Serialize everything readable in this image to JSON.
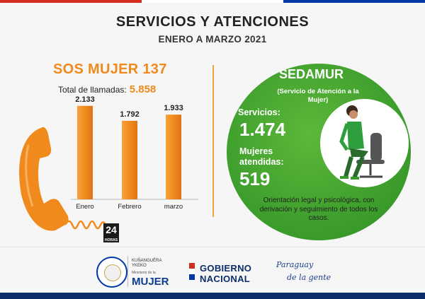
{
  "header": {
    "title": "SERVICIOS Y ATENCIONES",
    "subtitle": "ENERO A MARZO 2021"
  },
  "sos": {
    "title": "SOS MUJER 137",
    "total_label": "Total de llamadas:",
    "total_value": "5.858",
    "badge_number": "24",
    "badge_text": "HORAS"
  },
  "chart_data": {
    "type": "bar",
    "categories": [
      "Enero",
      "Febrero",
      "marzo"
    ],
    "values": [
      2133,
      1792,
      1933
    ],
    "value_labels": [
      "2.133",
      "1.792",
      "1.933"
    ],
    "ylim": [
      0,
      2500
    ],
    "grid": false,
    "bar_color": "#f08a1c"
  },
  "sedamur": {
    "title": "SEDAMUR",
    "subtitle": "(Servicio de Atención a la Mujer)",
    "services_label": "Servicios:",
    "services_value": "1.474",
    "women_label": "Mujeres atendidas:",
    "women_value": "519",
    "description": "Orientación legal y psicológica, con derivación y seguimiento de todos los casos."
  },
  "footer": {
    "ministry_small": "KUÑANGUÉRA YKEKO",
    "ministry_sub": "Ministerio de la",
    "ministry_big": "MUJER",
    "gobierno_line1": "GOBIERNO",
    "gobierno_line2": "NACIONAL",
    "slogan_line1": "Paraguay",
    "slogan_line2": "de la gente"
  },
  "colors": {
    "orange": "#f08a1c",
    "green": "#3a9b2b",
    "navy": "#0b2d6b",
    "flag_red": "#d52b1e",
    "flag_blue": "#0038a8"
  }
}
